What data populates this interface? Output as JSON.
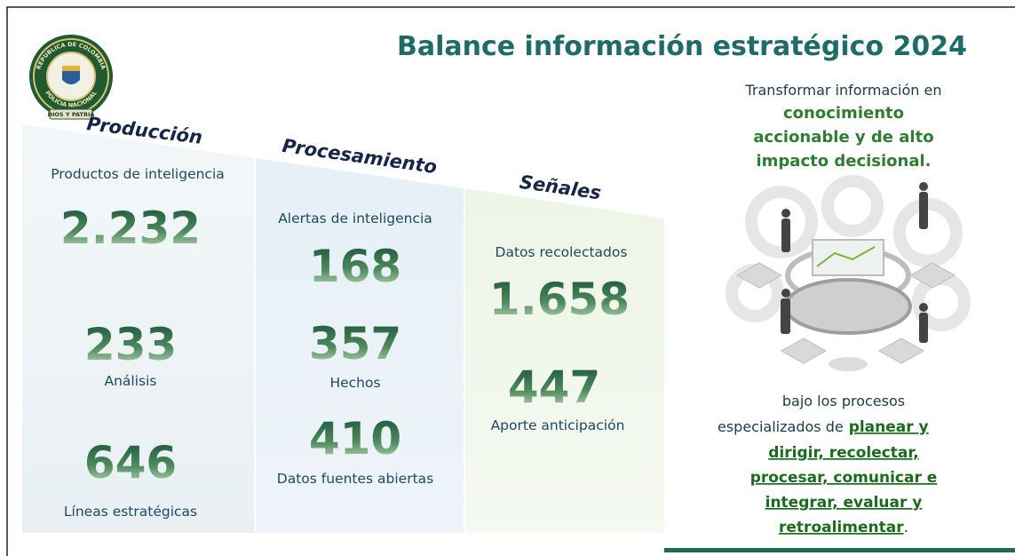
{
  "logo": {
    "top_text": "REPUBLICA DE COLOMBIA",
    "bottom_text": "POLICIA NACIONAL",
    "motto": "DIOS Y PATRIA"
  },
  "header": {
    "title": "Balance información estratégico 2024"
  },
  "columns": [
    {
      "heading": "Producción",
      "items": [
        {
          "label": "Productos de inteligencia",
          "value": "2.232"
        },
        {
          "label": "Análisis",
          "value": "233"
        },
        {
          "label": "Líneas estratégicas",
          "value": "646"
        }
      ]
    },
    {
      "heading": "Procesamiento",
      "items": [
        {
          "label": "Alertas de inteligencia",
          "value": "168"
        },
        {
          "label": "Hechos",
          "value": "357"
        },
        {
          "label": "Datos fuentes abiertas",
          "value": "410"
        }
      ]
    },
    {
      "heading": "Señales",
      "items": [
        {
          "label": "Datos recolectados",
          "value": "1.658"
        },
        {
          "label": "Aporte anticipación",
          "value": "447"
        }
      ]
    }
  ],
  "sidebar": {
    "intro": "Transformar información en",
    "highlight_lines": [
      "conocimiento",
      "accionable y de alto",
      "impacto decisional."
    ],
    "process_intro_lines": [
      "bajo los procesos",
      "especializados de"
    ],
    "process_lines": [
      "planear y",
      "dirigir, recolectar,",
      "procesar, comunicar e",
      "integrar, evaluar y",
      "retroalimentar"
    ],
    "end": "."
  }
}
